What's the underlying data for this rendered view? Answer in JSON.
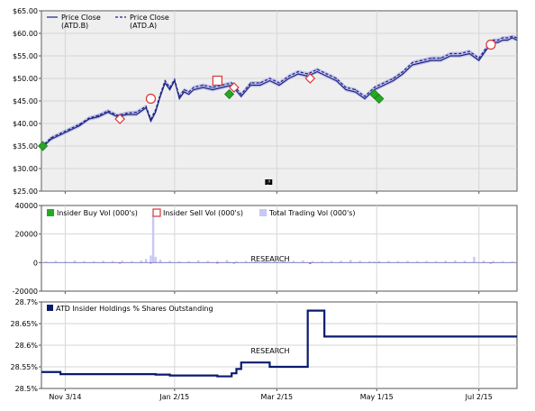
{
  "watermark": "INK RESEARCH",
  "chart_data": [
    {
      "type": "line",
      "panel": "price",
      "y_ticks": [
        "$65.00",
        "$60.00",
        "$55.00",
        "$50.00",
        "$45.00",
        "$40.00",
        "$35.00",
        "$30.00",
        "$25.00"
      ],
      "ylim": [
        25,
        65
      ],
      "xlim": [
        0,
        100
      ],
      "legend": [
        "Price Close (ATD.B)",
        "Price Close (ATD.A)"
      ],
      "legend_position": "top-left",
      "grid": true,
      "series": [
        {
          "name": "Price Close (ATD.B)",
          "color": "#1a237e",
          "x": [
            0,
            2,
            4,
            6,
            8,
            10,
            12,
            14,
            16,
            18,
            20,
            22,
            23,
            24,
            25,
            26,
            27,
            28,
            29,
            30,
            31,
            32,
            34,
            36,
            38,
            40,
            42,
            44,
            46,
            48,
            50,
            52,
            54,
            56,
            58,
            60,
            62,
            64,
            66,
            68,
            70,
            72,
            74,
            76,
            78,
            80,
            82,
            84,
            86,
            88,
            90,
            92,
            94,
            95,
            96,
            97,
            98,
            99,
            100
          ],
          "values": [
            34.5,
            36.5,
            37.5,
            38.5,
            39.5,
            41.0,
            41.5,
            42.5,
            41.5,
            42.0,
            42.0,
            43.5,
            40.5,
            42.5,
            46.0,
            49.0,
            47.5,
            49.5,
            45.5,
            47.0,
            46.5,
            47.5,
            48.0,
            47.5,
            48.0,
            48.5,
            46.0,
            48.5,
            48.5,
            49.5,
            48.5,
            50.0,
            51.0,
            50.5,
            51.5,
            50.5,
            49.5,
            47.5,
            47.0,
            45.5,
            47.5,
            48.5,
            49.5,
            51.0,
            53.0,
            53.5,
            54.0,
            54.0,
            55.0,
            55.0,
            55.5,
            54.0,
            57.0,
            58.0,
            58.0,
            58.5,
            58.5,
            59.0,
            58.5
          ]
        },
        {
          "name": "Price Close (ATD.A)",
          "color": "#1a237e",
          "x": [
            0,
            2,
            4,
            6,
            8,
            10,
            12,
            14,
            16,
            18,
            20,
            22,
            23,
            24,
            25,
            26,
            27,
            28,
            29,
            30,
            31,
            32,
            34,
            36,
            38,
            40,
            42,
            44,
            46,
            48,
            50,
            52,
            54,
            56,
            58,
            60,
            62,
            64,
            66,
            68,
            70,
            72,
            74,
            76,
            78,
            80,
            82,
            84,
            86,
            88,
            90,
            92,
            94,
            95,
            96,
            97,
            98,
            99,
            100
          ],
          "values": [
            34.8,
            36.8,
            37.8,
            38.8,
            39.8,
            41.2,
            41.8,
            42.8,
            41.8,
            42.3,
            42.5,
            43.8,
            41.0,
            43.0,
            46.5,
            49.5,
            48.0,
            49.8,
            46.0,
            47.5,
            47.0,
            48.0,
            48.5,
            48.0,
            48.5,
            49.0,
            46.5,
            49.0,
            49.0,
            50.0,
            49.0,
            50.5,
            51.5,
            51.0,
            52.0,
            51.0,
            50.0,
            48.0,
            47.5,
            46.0,
            48.0,
            49.0,
            50.0,
            51.5,
            53.5,
            54.0,
            54.5,
            54.5,
            55.5,
            55.5,
            56.0,
            54.5,
            57.5,
            58.5,
            58.5,
            59.0,
            59.0,
            59.3,
            59.0
          ]
        }
      ],
      "insider_buys": [
        {
          "x": 0.3,
          "y": 35.0
        },
        {
          "x": 39.5,
          "y": 46.5
        },
        {
          "x": 70.0,
          "y": 46.5
        },
        {
          "x": 71.0,
          "y": 45.5
        }
      ],
      "insider_sells": [
        {
          "x": 16.5,
          "y": 41.0
        },
        {
          "x": 23.0,
          "y": 45.5
        },
        {
          "x": 37.0,
          "y": 49.5
        },
        {
          "x": 40.5,
          "y": 48.0
        },
        {
          "x": 56.5,
          "y": 50.0
        },
        {
          "x": 94.5,
          "y": 57.5
        }
      ]
    },
    {
      "type": "bar",
      "panel": "volume",
      "y_ticks": [
        "40000",
        "20000",
        "0",
        "-20000"
      ],
      "ylim": [
        -20000,
        40000
      ],
      "xlim": [
        0,
        100
      ],
      "legend": [
        "Insider Buy Vol (000's)",
        "Insider Sell Vol (000's)",
        "Total Trading Vol (000's)"
      ],
      "legend_colors": [
        "#22aa22",
        "#dd3333",
        "#c8c8f5"
      ],
      "legend_position": "top-left",
      "grid": true,
      "series": [
        {
          "name": "Total Trading Vol (000's)",
          "x": [
            1,
            3,
            5,
            7,
            9,
            11,
            13,
            15,
            17,
            19,
            21,
            22,
            23,
            23.5,
            24,
            25,
            27,
            29,
            31,
            33,
            35,
            37,
            39,
            41,
            43,
            45,
            47,
            49,
            51,
            53,
            55,
            57,
            59,
            61,
            63,
            65,
            67,
            69,
            71,
            73,
            75,
            77,
            79,
            81,
            83,
            85,
            87,
            89,
            91,
            93,
            95,
            97,
            99
          ],
          "values": [
            800,
            1200,
            900,
            1500,
            1000,
            900,
            1200,
            1100,
            1300,
            1000,
            1500,
            2500,
            5000,
            33000,
            4000,
            2000,
            1200,
            900,
            1000,
            1500,
            1200,
            1000,
            1800,
            900,
            1100,
            1000,
            1300,
            900,
            1000,
            1200,
            1500,
            1000,
            900,
            1100,
            1300,
            1800,
            1200,
            1000,
            900,
            1100,
            1000,
            1200,
            1000,
            1100,
            900,
            1300,
            1500,
            1200,
            4000,
            1300,
            1100,
            1000,
            900
          ]
        },
        {
          "name": "Insider Buy Vol (000's)",
          "x": [
            39.5,
            70.0,
            71.0
          ],
          "values": [
            300,
            400,
            300
          ]
        },
        {
          "name": "Insider Sell Vol (000's)",
          "x": [
            16.5,
            23.0,
            37.0,
            40.5,
            56.5,
            94.5
          ],
          "values": [
            -300,
            -400,
            -300,
            -200,
            -900,
            -300
          ]
        }
      ]
    },
    {
      "type": "line",
      "panel": "holdings",
      "y_ticks": [
        "28.7%",
        "28.65%",
        "28.6%",
        "28.55%",
        "28.5%"
      ],
      "ylim": [
        28.5,
        28.7
      ],
      "xlim": [
        0,
        100
      ],
      "legend": [
        "ATD Insider Holdings % Shares Outstanding"
      ],
      "legend_position": "top-left",
      "grid": true,
      "x_ticks": [
        "Nov 3/14",
        "Jan 2/15",
        "Mar 2/15",
        "May 1/15",
        "Jul 2/15"
      ],
      "x_tick_positions": [
        5,
        28,
        49.5,
        70.5,
        92
      ],
      "series": [
        {
          "name": "ATD Insider Holdings % Shares Outstanding",
          "color": "#0a1a6e",
          "x": [
            0,
            4,
            4,
            24,
            24,
            27,
            27,
            37,
            37,
            40,
            40,
            41,
            41,
            42,
            42,
            48,
            48,
            56,
            56,
            59.5,
            59.5,
            63,
            63,
            100
          ],
          "values": [
            28.538,
            28.538,
            28.533,
            28.533,
            28.532,
            28.532,
            28.53,
            28.53,
            28.528,
            28.528,
            28.535,
            28.535,
            28.545,
            28.545,
            28.56,
            28.56,
            28.55,
            28.55,
            28.68,
            28.68,
            28.62,
            28.62,
            28.62,
            28.62
          ]
        }
      ]
    }
  ]
}
